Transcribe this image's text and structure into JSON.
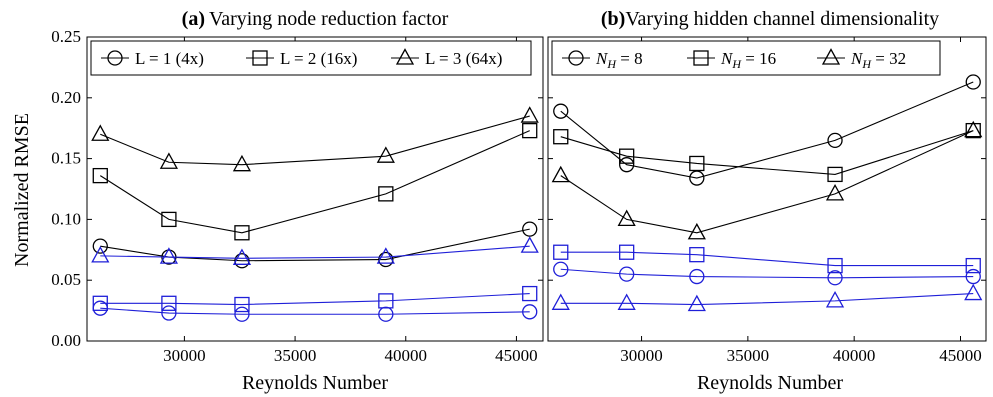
{
  "chart_data": [
    {
      "type": "line",
      "title_prefix": "(a)",
      "title": "Varying node reduction factor",
      "xlabel": "Reynolds Number",
      "ylabel": "Normalized RMSE",
      "xlim": [
        25600,
        46200
      ],
      "ylim": [
        0.0,
        0.25
      ],
      "xticks": [
        30000,
        35000,
        40000,
        45000
      ],
      "xtick_labels": [
        "30000",
        "35000",
        "40000",
        "45000"
      ],
      "yticks": [
        0.0,
        0.05,
        0.1,
        0.15,
        0.2,
        0.25
      ],
      "ytick_labels": [
        "0.00",
        "0.05",
        "0.10",
        "0.15",
        "0.20",
        "0.25"
      ],
      "grid": false,
      "legend_position": "top",
      "legend": [
        {
          "label": "L = 1 (4x)",
          "marker": "circle"
        },
        {
          "label": "L = 2 (16x)",
          "marker": "square"
        },
        {
          "label": "L = 3 (64x)",
          "marker": "triangle"
        }
      ],
      "x": [
        26200,
        29300,
        32600,
        39100,
        45600
      ],
      "series": [
        {
          "name": "L = 1 (4x)",
          "marker": "circle",
          "color": "#000000",
          "values": [
            0.078,
            0.069,
            0.066,
            0.067,
            0.092
          ]
        },
        {
          "name": "L = 2 (16x)",
          "marker": "square",
          "color": "#000000",
          "values": [
            0.136,
            0.1,
            0.089,
            0.121,
            0.173
          ]
        },
        {
          "name": "L = 3 (64x)",
          "marker": "triangle",
          "color": "#000000",
          "values": [
            0.17,
            0.147,
            0.145,
            0.152,
            0.185
          ]
        },
        {
          "marker": "triangle",
          "color": "#1f1fd8",
          "values": [
            0.07,
            0.069,
            0.068,
            0.069,
            0.078
          ]
        },
        {
          "marker": "square",
          "color": "#1f1fd8",
          "values": [
            0.031,
            0.031,
            0.03,
            0.033,
            0.039
          ]
        },
        {
          "marker": "circle",
          "color": "#1f1fd8",
          "values": [
            0.027,
            0.023,
            0.022,
            0.022,
            0.024
          ]
        }
      ]
    },
    {
      "type": "line",
      "title_prefix": "(b)",
      "title": "Varying hidden channel dimensionality",
      "xlabel": "Reynolds Number",
      "ylabel": "",
      "xlim": [
        25600,
        46200
      ],
      "ylim": [
        0.0,
        0.25
      ],
      "xticks": [
        30000,
        35000,
        40000,
        45000
      ],
      "xtick_labels": [
        "30000",
        "35000",
        "40000",
        "45000"
      ],
      "yticks": [
        0.0,
        0.05,
        0.1,
        0.15,
        0.2,
        0.25
      ],
      "ytick_labels": [],
      "grid": false,
      "legend_position": "top",
      "legend": [
        {
          "label_var": "N",
          "label_sub": "H",
          "label_rest": " = 8",
          "marker": "circle"
        },
        {
          "label_var": "N",
          "label_sub": "H",
          "label_rest": " = 16",
          "marker": "square"
        },
        {
          "label_var": "N",
          "label_sub": "H",
          "label_rest": " = 32",
          "marker": "triangle"
        }
      ],
      "x": [
        26200,
        29300,
        32600,
        39100,
        45600
      ],
      "series": [
        {
          "name": "N_H = 8",
          "marker": "circle",
          "color": "#000000",
          "values": [
            0.189,
            0.145,
            0.134,
            0.165,
            0.213
          ]
        },
        {
          "name": "N_H = 16",
          "marker": "square",
          "color": "#000000",
          "values": [
            0.168,
            0.152,
            0.146,
            0.137,
            0.173
          ]
        },
        {
          "name": "N_H = 32",
          "marker": "triangle",
          "color": "#000000",
          "values": [
            0.136,
            0.1,
            0.089,
            0.121,
            0.173
          ]
        },
        {
          "marker": "square",
          "color": "#1f1fd8",
          "values": [
            0.073,
            0.073,
            0.071,
            0.062,
            0.062
          ]
        },
        {
          "marker": "circle",
          "color": "#1f1fd8",
          "values": [
            0.059,
            0.055,
            0.053,
            0.052,
            0.053
          ]
        },
        {
          "marker": "triangle",
          "color": "#1f1fd8",
          "values": [
            0.031,
            0.031,
            0.03,
            0.033,
            0.039
          ]
        }
      ]
    }
  ]
}
